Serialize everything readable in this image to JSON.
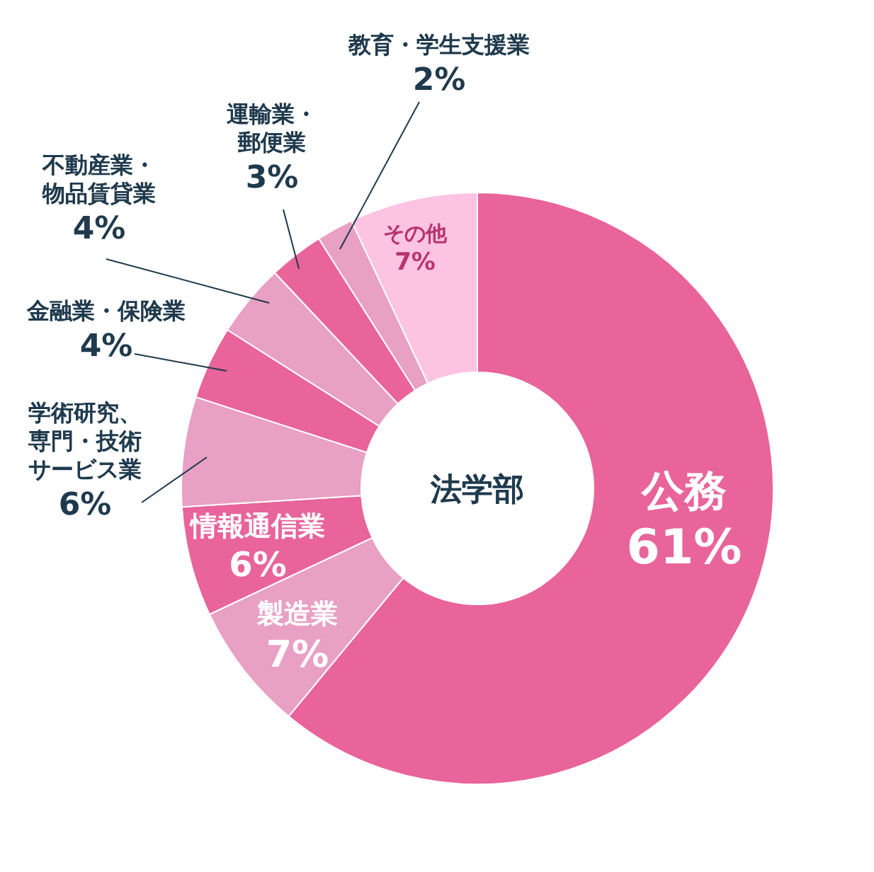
{
  "chart_data": {
    "type": "donut",
    "title": "法学部",
    "categories": [
      "公務",
      "製造業",
      "情報通信業",
      "学術研究、専門・技術サービス業",
      "金融業・保険業",
      "不動産業・物品賃貸業",
      "運輸業・郵便業",
      "教育・学生支援業",
      "その他"
    ],
    "values": [
      61,
      7,
      6,
      6,
      4,
      4,
      3,
      2,
      7
    ],
    "value_labels": [
      "61%",
      "7%",
      "6%",
      "6%",
      "4%",
      "4%",
      "3%",
      "2%",
      "7%"
    ],
    "colors": [
      "#e8649a",
      "#e8a0c4",
      "#e8649a",
      "#e8a0c4",
      "#e8649a",
      "#e8a0c4",
      "#e8649a",
      "#e8a0c4",
      "#fdc3e3"
    ]
  }
}
